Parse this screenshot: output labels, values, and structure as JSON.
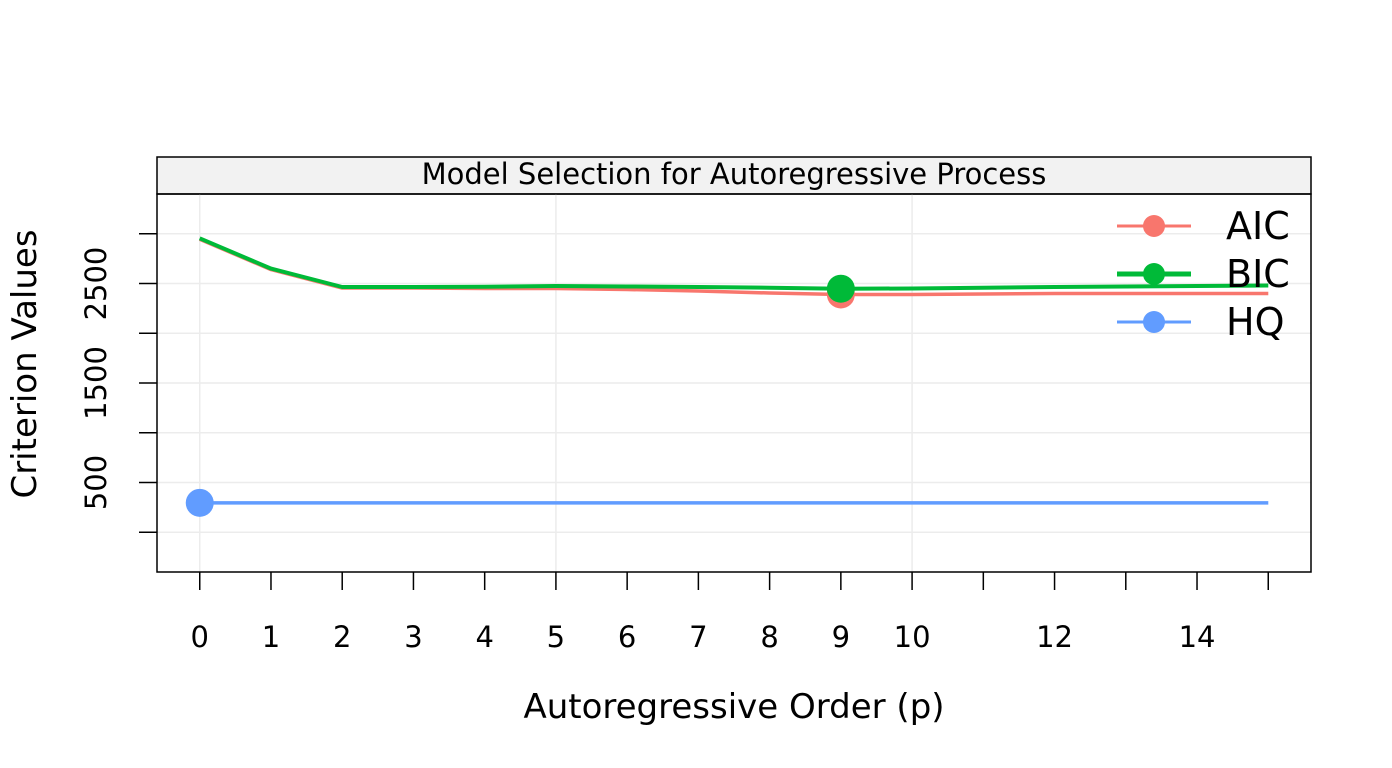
{
  "chart_data": {
    "type": "line",
    "title": "Model Selection for Autoregressive Process",
    "xlabel": "Autoregressive Order (p)",
    "ylabel": "Criterion Values",
    "xlim": [
      -0.6,
      15.6
    ],
    "ylim": [
      -400,
      3400
    ],
    "x_ticks": [
      0,
      1,
      2,
      3,
      4,
      5,
      6,
      7,
      8,
      9,
      10,
      11,
      12,
      13,
      14,
      15
    ],
    "x_tick_labels": [
      "0",
      "1",
      "2",
      "3",
      "4",
      "5",
      "6",
      "7",
      "8",
      "9",
      "10",
      "",
      "12",
      "",
      "14",
      ""
    ],
    "y_ticks": [
      0,
      500,
      1000,
      1500,
      2000,
      2500,
      3000
    ],
    "y_tick_labels": [
      "",
      "500",
      "",
      "1500",
      "",
      "2500",
      ""
    ],
    "grid": true,
    "legend_position": "top-right",
    "x": [
      0,
      1,
      2,
      3,
      4,
      5,
      6,
      7,
      8,
      9,
      10,
      11,
      12,
      13,
      14,
      15
    ],
    "series": [
      {
        "name": "AIC",
        "color": "#F8766D",
        "values": [
          2945,
          2640,
          2455,
          2455,
          2450,
          2450,
          2440,
          2425,
          2405,
          2390,
          2390,
          2395,
          2400,
          2400,
          2400,
          2400
        ],
        "highlight_x": 9,
        "highlight_value": 2390
      },
      {
        "name": "BIC",
        "color": "#00BA38",
        "values": [
          2955,
          2650,
          2465,
          2465,
          2468,
          2475,
          2470,
          2465,
          2458,
          2448,
          2450,
          2458,
          2465,
          2470,
          2475,
          2480
        ],
        "highlight_x": 9,
        "highlight_value": 2448
      },
      {
        "name": "HQ",
        "color": "#619CFF",
        "values": [
          295,
          295,
          295,
          295,
          295,
          295,
          295,
          295,
          295,
          295,
          295,
          295,
          295,
          295,
          295,
          295
        ],
        "highlight_x": 0,
        "highlight_value": 295
      }
    ]
  }
}
